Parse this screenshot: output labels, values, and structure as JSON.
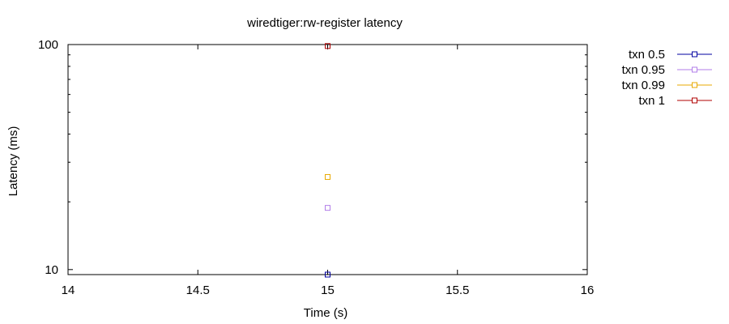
{
  "chart_data": {
    "type": "scatter",
    "title": "wiredtiger:rw-register latency",
    "xlabel": "Time (s)",
    "ylabel": "Latency (ms)",
    "xlim": [
      14,
      16
    ],
    "ylim": [
      9.5,
      100
    ],
    "yscale": "log",
    "x_ticks": [
      14,
      14.5,
      15,
      15.5,
      16
    ],
    "x_tick_labels": [
      "14",
      "14.5",
      "15",
      "15.5",
      "16"
    ],
    "y_ticks": [
      10,
      100
    ],
    "y_tick_labels": [
      "10",
      "100"
    ],
    "grid": false,
    "legend_position": "outside-top-right",
    "series": [
      {
        "name": "txn 0.5",
        "color": "#0000a0",
        "marker": "square-open",
        "points": [
          {
            "x": 15,
            "y": 9.5
          }
        ]
      },
      {
        "name": "txn 0.95",
        "color": "#b27ee8",
        "marker": "square-open",
        "points": [
          {
            "x": 15,
            "y": 18.8
          }
        ]
      },
      {
        "name": "txn 0.99",
        "color": "#e8a800",
        "marker": "square-open",
        "points": [
          {
            "x": 15,
            "y": 25.8
          }
        ]
      },
      {
        "name": "txn 1",
        "color": "#b00000",
        "marker": "square-open",
        "points": [
          {
            "x": 15,
            "y": 98.5
          }
        ]
      }
    ]
  }
}
